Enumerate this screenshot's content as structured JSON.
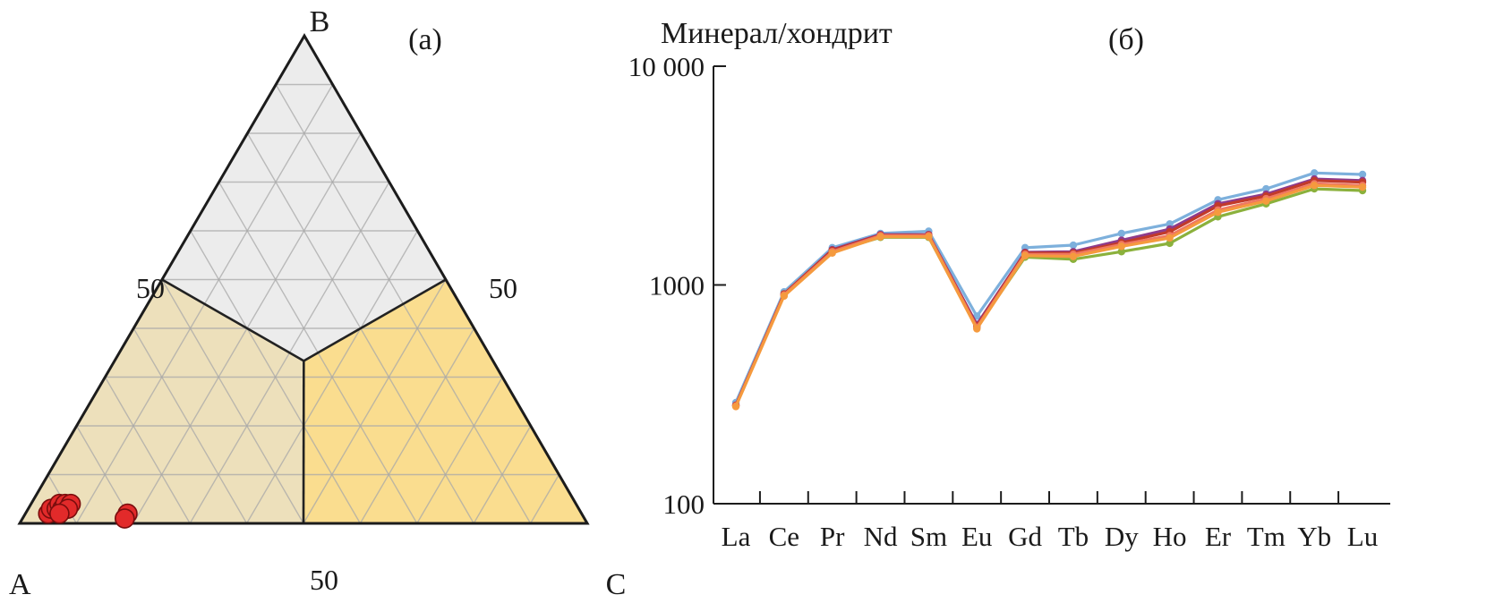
{
  "chart_data": [
    {
      "type": "scatter",
      "subtype": "ternary",
      "panel_label": "(a)",
      "vertices": [
        "A",
        "B",
        "C"
      ],
      "edge_tick_label": "50",
      "grid_step": 10,
      "fields": [
        {
          "name": "B-field",
          "color": "#ececec"
        },
        {
          "name": "A-field",
          "color": "#ede0bb"
        },
        {
          "name": "C-field",
          "color": "#fadd8f"
        }
      ],
      "point_color": "#e22a2a",
      "points": [
        {
          "A": 94,
          "B": 2,
          "C": 4
        },
        {
          "A": 93,
          "B": 3,
          "C": 4
        },
        {
          "A": 92,
          "B": 3,
          "C": 5
        },
        {
          "A": 91,
          "B": 4,
          "C": 5
        },
        {
          "A": 91,
          "B": 3,
          "C": 6
        },
        {
          "A": 90,
          "B": 4,
          "C": 6
        },
        {
          "A": 89,
          "B": 4,
          "C": 7
        },
        {
          "A": 90,
          "B": 3,
          "C": 7
        },
        {
          "A": 92,
          "B": 2,
          "C": 6
        },
        {
          "A": 80,
          "B": 2,
          "C": 18
        },
        {
          "A": 81,
          "B": 1,
          "C": 18
        }
      ]
    },
    {
      "type": "line",
      "panel_label": "(б)",
      "ylabel": "Минерал/хондрит",
      "yscale": "log",
      "ylim": [
        100,
        10000
      ],
      "yticks": [
        100,
        1000,
        10000
      ],
      "ytick_labels": [
        "100",
        "1000",
        "10 000"
      ],
      "categories": [
        "La",
        "Ce",
        "Pr",
        "Nd",
        "Sm",
        "Eu",
        "Gd",
        "Tb",
        "Dy",
        "Ho",
        "Er",
        "Tm",
        "Yb",
        "Lu"
      ],
      "series": [
        {
          "color": "#7db0dc",
          "values": [
            290,
            930,
            1480,
            1720,
            1760,
            720,
            1480,
            1520,
            1720,
            1900,
            2450,
            2750,
            3250,
            3200
          ]
        },
        {
          "color": "#8bb13c",
          "values": [
            280,
            900,
            1420,
            1650,
            1650,
            640,
            1340,
            1310,
            1420,
            1550,
            2050,
            2350,
            2750,
            2700
          ]
        },
        {
          "color": "#8e3b8c",
          "values": [
            282,
            905,
            1450,
            1700,
            1700,
            660,
            1410,
            1420,
            1600,
            1800,
            2350,
            2600,
            3050,
            3000
          ]
        },
        {
          "color": "#c23a2a",
          "values": [
            282,
            910,
            1440,
            1690,
            1690,
            650,
            1400,
            1400,
            1560,
            1750,
            2300,
            2550,
            3000,
            2950
          ]
        },
        {
          "color": "#f07860",
          "values": [
            280,
            900,
            1420,
            1680,
            1680,
            640,
            1380,
            1380,
            1530,
            1680,
            2200,
            2480,
            2900,
            2850
          ]
        },
        {
          "color": "#f59a3e",
          "values": [
            278,
            890,
            1400,
            1660,
            1660,
            630,
            1360,
            1350,
            1500,
            1640,
            2150,
            2420,
            2850,
            2800
          ]
        }
      ]
    }
  ]
}
